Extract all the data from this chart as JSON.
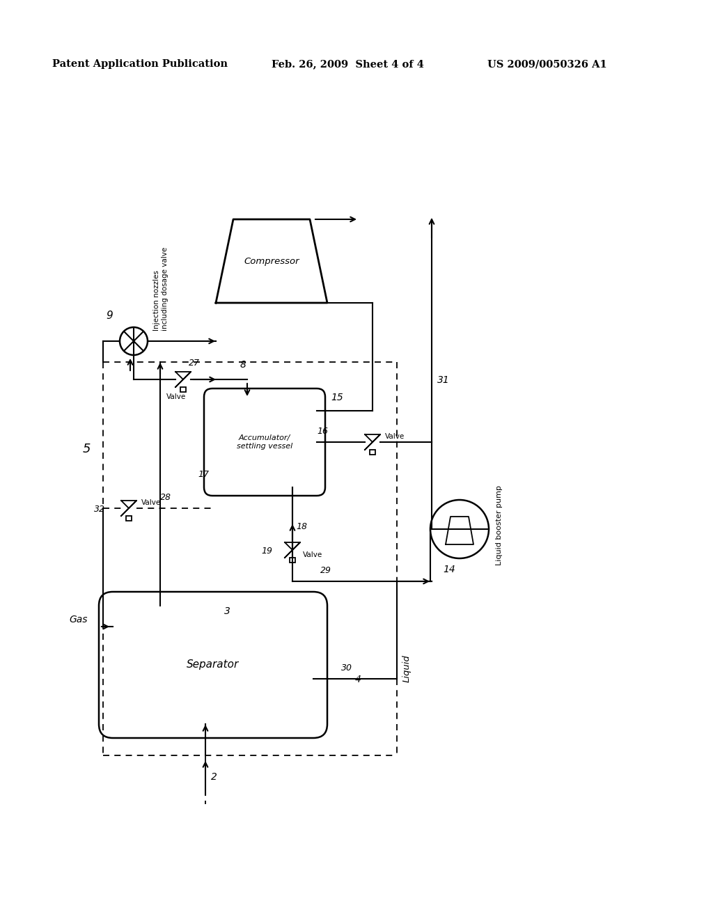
{
  "bg_color": "#ffffff",
  "header_left": "Patent Application Publication",
  "header_mid": "Feb. 26, 2009  Sheet 4 of 4",
  "header_right": "US 2009/0050326 A1",
  "fig_width": 10.24,
  "fig_height": 13.2
}
